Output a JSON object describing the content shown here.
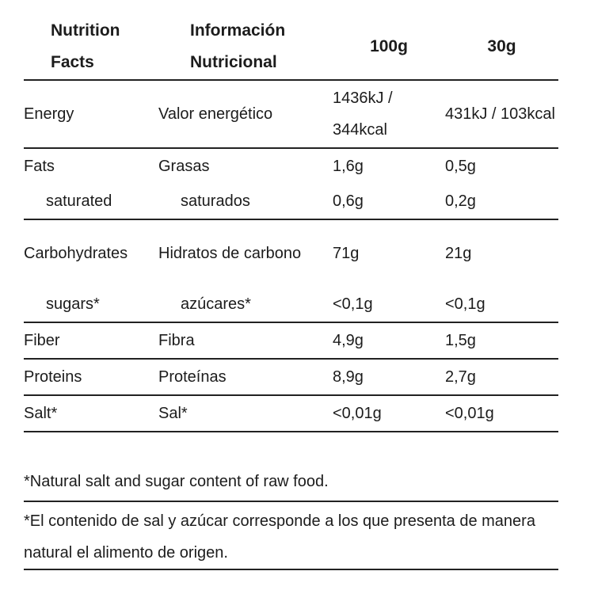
{
  "headers": {
    "col1": "Nutrition Facts",
    "col2": "Información Nutricional",
    "col3": "100g",
    "col4": "30g"
  },
  "rows": [
    {
      "en": "Energy",
      "es": "Valor energético",
      "v100": "1436kJ / 344kcal",
      "v30": "431kJ / 103kcal"
    },
    {
      "en": "Fats",
      "es": "Grasas",
      "v100": "1,6g",
      "v30": "0,5g"
    },
    {
      "en": "saturated",
      "es": "saturados",
      "v100": "0,6g",
      "v30": "0,2g"
    },
    {
      "en": "Carbohydrates",
      "es": "Hidratos de carbono",
      "v100": "71g",
      "v30": "21g"
    },
    {
      "en": "sugars*",
      "es": "azúcares*",
      "v100": "<0,1g",
      "v30": "<0,1g"
    },
    {
      "en": "Fiber",
      "es": "Fibra",
      "v100": "4,9g",
      "v30": "1,5g"
    },
    {
      "en": "Proteins",
      "es": "Proteínas",
      "v100": "8,9g",
      "v30": "2,7g"
    },
    {
      "en": "Salt*",
      "es": "Sal*",
      "v100": "<0,01g",
      "v30": "<0,01g"
    }
  ],
  "notes": {
    "en": "*Natural salt and sugar content of raw food.",
    "es": "*El contenido de sal y azúcar corresponde a los que presenta de manera natural el alimento de origen."
  }
}
